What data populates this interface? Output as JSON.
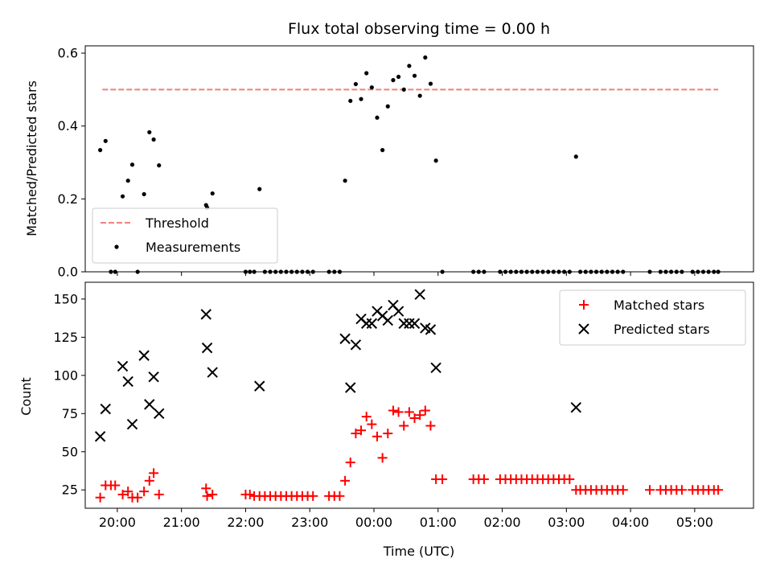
{
  "chart_data": [
    {
      "type": "scatter",
      "title": "Flux total observing time = 0.00 h",
      "ylabel": "Matched/Predicted stars",
      "xlabel": "",
      "xlim": [
        "19:30",
        "05:55"
      ],
      "ylim": [
        0,
        0.62
      ],
      "yticks": [
        0.0,
        0.2,
        0.4,
        0.6
      ],
      "yticklabels": [
        "0.0",
        "0.2",
        "0.4",
        "0.6"
      ],
      "grid": false,
      "legend_position": "lower-left",
      "threshold": {
        "name": "Threshold",
        "value": 0.5,
        "x_range": [
          "19:46",
          "05:22"
        ],
        "color": "#f08080",
        "style": "dashed"
      },
      "series": [
        {
          "name": "Measurements",
          "marker": "dot",
          "color": "#000000",
          "points": [
            [
              "19:44",
              0.334
            ],
            [
              "19:49",
              0.359
            ],
            [
              "19:54",
              0.0
            ],
            [
              "19:58",
              0.0
            ],
            [
              "20:05",
              0.207
            ],
            [
              "20:10",
              0.25
            ],
            [
              "20:14",
              0.294
            ],
            [
              "20:19",
              0.0
            ],
            [
              "20:25",
              0.213
            ],
            [
              "20:30",
              0.383
            ],
            [
              "20:34",
              0.363
            ],
            [
              "20:39",
              0.292
            ],
            [
              "21:23",
              0.183
            ],
            [
              "21:24",
              0.176
            ],
            [
              "21:29",
              0.215
            ],
            [
              "22:00",
              0.0
            ],
            [
              "22:04",
              0.0
            ],
            [
              "22:08",
              0.0
            ],
            [
              "22:13",
              0.227
            ],
            [
              "22:18",
              0.0
            ],
            [
              "22:23",
              0.0
            ],
            [
              "22:28",
              0.0
            ],
            [
              "22:33",
              0.0
            ],
            [
              "22:38",
              0.0
            ],
            [
              "22:43",
              0.0
            ],
            [
              "22:48",
              0.0
            ],
            [
              "22:53",
              0.0
            ],
            [
              "22:58",
              0.0
            ],
            [
              "23:03",
              0.0
            ],
            [
              "23:18",
              0.0
            ],
            [
              "23:23",
              0.0
            ],
            [
              "23:28",
              0.0
            ],
            [
              "23:33",
              0.25
            ],
            [
              "23:38",
              0.469
            ],
            [
              "23:43",
              0.515
            ],
            [
              "23:48",
              0.474
            ],
            [
              "23:53",
              0.545
            ],
            [
              "23:58",
              0.506
            ],
            [
              "00:03",
              0.423
            ],
            [
              "00:08",
              0.334
            ],
            [
              "00:13",
              0.454
            ],
            [
              "00:18",
              0.526
            ],
            [
              "00:23",
              0.535
            ],
            [
              "00:28",
              0.5
            ],
            [
              "00:33",
              0.565
            ],
            [
              "00:38",
              0.538
            ],
            [
              "00:43",
              0.483
            ],
            [
              "00:48",
              0.588
            ],
            [
              "00:53",
              0.516
            ],
            [
              "00:58",
              0.305
            ],
            [
              "01:04",
              0.0
            ],
            [
              "01:33",
              0.0
            ],
            [
              "01:38",
              0.0
            ],
            [
              "01:43",
              0.0
            ],
            [
              "01:58",
              0.0
            ],
            [
              "02:03",
              0.0
            ],
            [
              "02:08",
              0.0
            ],
            [
              "02:13",
              0.0
            ],
            [
              "02:18",
              0.0
            ],
            [
              "02:23",
              0.0
            ],
            [
              "02:28",
              0.0
            ],
            [
              "02:33",
              0.0
            ],
            [
              "02:38",
              0.0
            ],
            [
              "02:43",
              0.0
            ],
            [
              "02:48",
              0.0
            ],
            [
              "02:53",
              0.0
            ],
            [
              "02:58",
              0.0
            ],
            [
              "03:03",
              0.0
            ],
            [
              "03:09",
              0.316
            ],
            [
              "03:13",
              0.0
            ],
            [
              "03:18",
              0.0
            ],
            [
              "03:23",
              0.0
            ],
            [
              "03:28",
              0.0
            ],
            [
              "03:33",
              0.0
            ],
            [
              "03:38",
              0.0
            ],
            [
              "03:43",
              0.0
            ],
            [
              "03:48",
              0.0
            ],
            [
              "03:53",
              0.0
            ],
            [
              "04:18",
              0.0
            ],
            [
              "04:28",
              0.0
            ],
            [
              "04:33",
              0.0
            ],
            [
              "04:38",
              0.0
            ],
            [
              "04:43",
              0.0
            ],
            [
              "04:48",
              0.0
            ],
            [
              "04:58",
              0.0
            ],
            [
              "05:03",
              0.0
            ],
            [
              "05:08",
              0.0
            ],
            [
              "05:13",
              0.0
            ],
            [
              "05:18",
              0.0
            ],
            [
              "05:22",
              0.0
            ]
          ]
        }
      ]
    },
    {
      "type": "scatter",
      "title": "",
      "xlabel": "Time (UTC)",
      "ylabel": "Count",
      "xlim": [
        "19:30",
        "05:55"
      ],
      "ylim": [
        13,
        161
      ],
      "xticks": [
        "20:00",
        "21:00",
        "22:00",
        "23:00",
        "00:00",
        "01:00",
        "02:00",
        "03:00",
        "04:00",
        "05:00"
      ],
      "yticks": [
        25,
        50,
        75,
        100,
        125,
        150
      ],
      "yticklabels": [
        "25",
        "50",
        "75",
        "100",
        "125",
        "150"
      ],
      "grid": false,
      "legend_position": "upper-right",
      "series": [
        {
          "name": "Matched stars",
          "marker": "plus",
          "color": "#ff0000",
          "points": [
            [
              "19:44",
              20
            ],
            [
              "19:49",
              28
            ],
            [
              "19:54",
              28
            ],
            [
              "19:58",
              28
            ],
            [
              "20:05",
              22
            ],
            [
              "20:10",
              24
            ],
            [
              "20:14",
              20
            ],
            [
              "20:19",
              20
            ],
            [
              "20:25",
              24
            ],
            [
              "20:30",
              31
            ],
            [
              "20:34",
              36
            ],
            [
              "20:39",
              22
            ],
            [
              "21:23",
              26
            ],
            [
              "21:24",
              21
            ],
            [
              "21:29",
              22
            ],
            [
              "22:00",
              22
            ],
            [
              "22:04",
              22
            ],
            [
              "22:08",
              21
            ],
            [
              "22:13",
              21
            ],
            [
              "22:18",
              21
            ],
            [
              "22:23",
              21
            ],
            [
              "22:28",
              21
            ],
            [
              "22:33",
              21
            ],
            [
              "22:38",
              21
            ],
            [
              "22:43",
              21
            ],
            [
              "22:48",
              21
            ],
            [
              "22:53",
              21
            ],
            [
              "22:58",
              21
            ],
            [
              "23:03",
              21
            ],
            [
              "23:18",
              21
            ],
            [
              "23:23",
              21
            ],
            [
              "23:28",
              21
            ],
            [
              "23:33",
              31
            ],
            [
              "23:38",
              43
            ],
            [
              "23:43",
              62
            ],
            [
              "23:48",
              64
            ],
            [
              "23:53",
              73
            ],
            [
              "23:58",
              68
            ],
            [
              "00:03",
              60
            ],
            [
              "00:08",
              46
            ],
            [
              "00:13",
              62
            ],
            [
              "00:18",
              77
            ],
            [
              "00:23",
              76
            ],
            [
              "00:28",
              67
            ],
            [
              "00:33",
              76
            ],
            [
              "00:38",
              72
            ],
            [
              "00:43",
              74
            ],
            [
              "00:48",
              77
            ],
            [
              "00:53",
              67
            ],
            [
              "00:58",
              32
            ],
            [
              "01:04",
              32
            ],
            [
              "01:33",
              32
            ],
            [
              "01:38",
              32
            ],
            [
              "01:43",
              32
            ],
            [
              "01:58",
              32
            ],
            [
              "02:03",
              32
            ],
            [
              "02:08",
              32
            ],
            [
              "02:13",
              32
            ],
            [
              "02:18",
              32
            ],
            [
              "02:23",
              32
            ],
            [
              "02:28",
              32
            ],
            [
              "02:33",
              32
            ],
            [
              "02:38",
              32
            ],
            [
              "02:43",
              32
            ],
            [
              "02:48",
              32
            ],
            [
              "02:53",
              32
            ],
            [
              "02:58",
              32
            ],
            [
              "03:03",
              32
            ],
            [
              "03:09",
              25
            ],
            [
              "03:13",
              25
            ],
            [
              "03:18",
              25
            ],
            [
              "03:23",
              25
            ],
            [
              "03:28",
              25
            ],
            [
              "03:33",
              25
            ],
            [
              "03:38",
              25
            ],
            [
              "03:43",
              25
            ],
            [
              "03:48",
              25
            ],
            [
              "03:53",
              25
            ],
            [
              "04:18",
              25
            ],
            [
              "04:28",
              25
            ],
            [
              "04:33",
              25
            ],
            [
              "04:38",
              25
            ],
            [
              "04:43",
              25
            ],
            [
              "04:48",
              25
            ],
            [
              "04:58",
              25
            ],
            [
              "05:03",
              25
            ],
            [
              "05:08",
              25
            ],
            [
              "05:13",
              25
            ],
            [
              "05:18",
              25
            ],
            [
              "05:22",
              25
            ]
          ]
        },
        {
          "name": "Predicted stars",
          "marker": "x",
          "color": "#000000",
          "points": [
            [
              "19:44",
              60
            ],
            [
              "19:49",
              78
            ],
            [
              "20:05",
              106
            ],
            [
              "20:10",
              96
            ],
            [
              "20:14",
              68
            ],
            [
              "20:25",
              113
            ],
            [
              "20:30",
              81
            ],
            [
              "20:34",
              99
            ],
            [
              "20:39",
              75
            ],
            [
              "21:23",
              140
            ],
            [
              "21:24",
              118
            ],
            [
              "21:29",
              102
            ],
            [
              "22:13",
              93
            ],
            [
              "23:33",
              124
            ],
            [
              "23:38",
              92
            ],
            [
              "23:43",
              120
            ],
            [
              "23:48",
              137
            ],
            [
              "23:53",
              134
            ],
            [
              "23:58",
              134
            ],
            [
              "00:03",
              142
            ],
            [
              "00:08",
              139
            ],
            [
              "00:13",
              136
            ],
            [
              "00:18",
              146
            ],
            [
              "00:23",
              142
            ],
            [
              "00:28",
              134
            ],
            [
              "00:33",
              134
            ],
            [
              "00:38",
              134
            ],
            [
              "00:43",
              153
            ],
            [
              "00:48",
              131
            ],
            [
              "00:53",
              130
            ],
            [
              "00:58",
              105
            ],
            [
              "03:09",
              79
            ]
          ]
        }
      ]
    }
  ]
}
